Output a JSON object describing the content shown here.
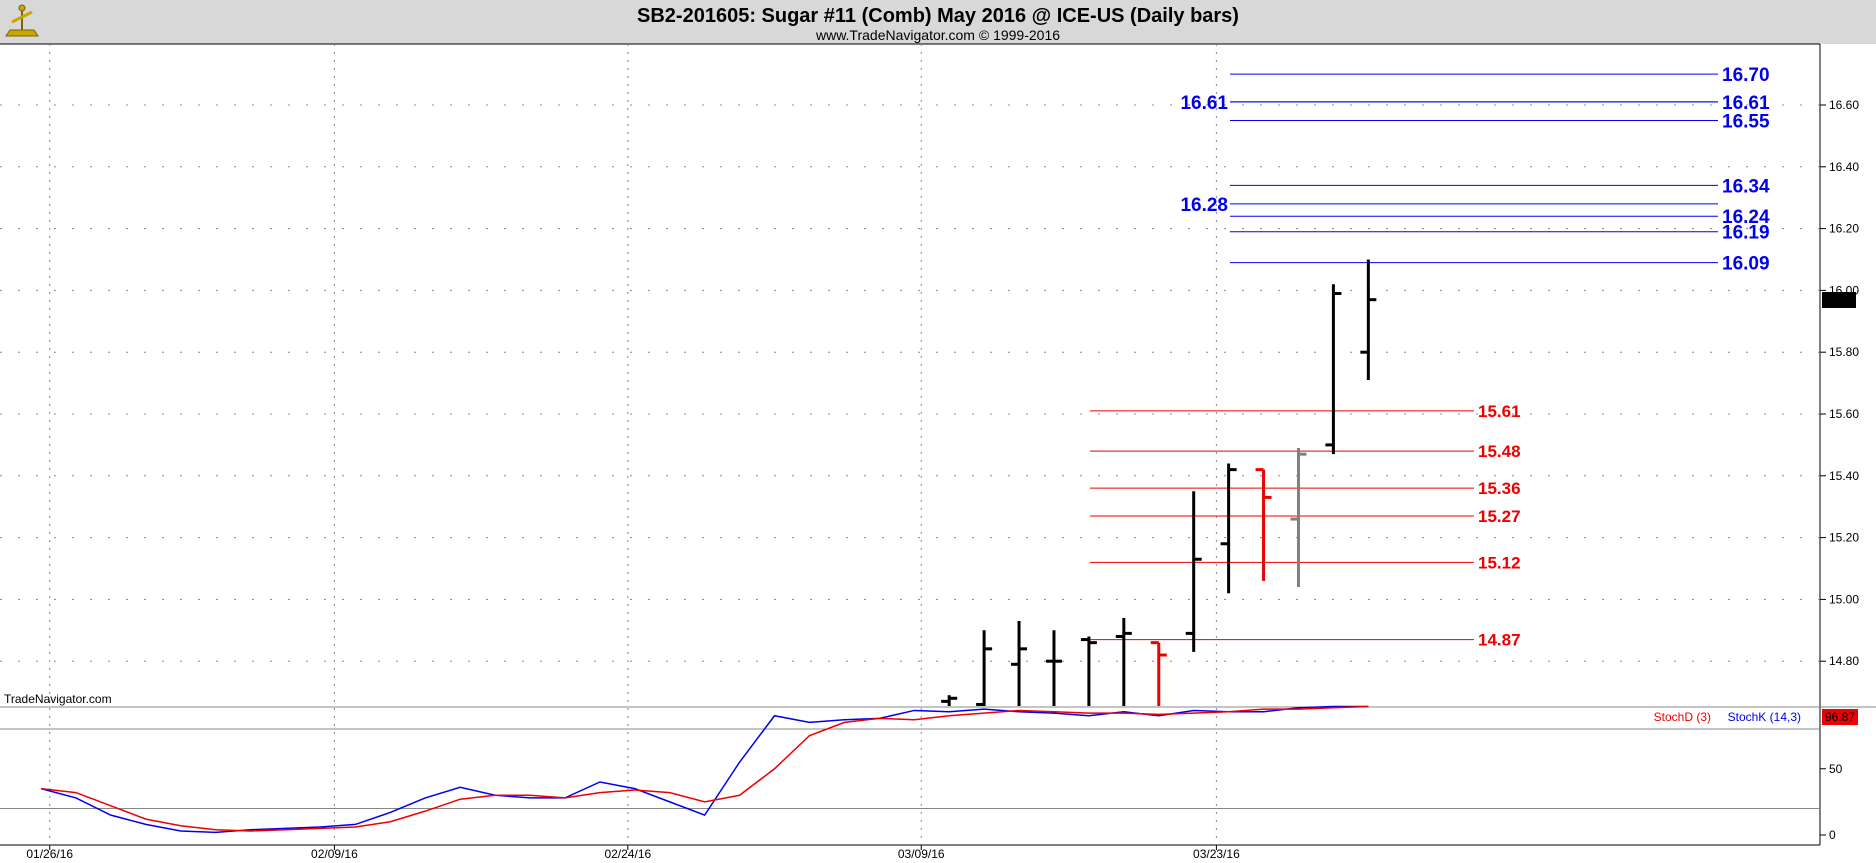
{
  "header": {
    "title": "SB2-201605:  Sugar #11 (Comb) May 2016 @ ICE-US  (Daily bars)",
    "subtitle": "www.TradeNavigator.com © 1999-2016"
  },
  "watermark": "TradeNavigator.com",
  "colors": {
    "title_bar": "#d8d8d8",
    "price_bar": "#000000",
    "down_bar": "#ee0000",
    "gray_bar": "#808080",
    "resistance": "#0000ee",
    "support": "#ee0000",
    "stoch_k": "#0000ee",
    "stoch_d": "#ee0000"
  },
  "chart_data": [
    {
      "type": "ohlc",
      "x_dates": [
        "01/26/16",
        "02/09/16",
        "02/24/16",
        "03/09/16",
        "03/23/16"
      ],
      "y_ticks": [
        "14.80",
        "15.00",
        "15.20",
        "15.40",
        "15.60",
        "15.80",
        "16.00",
        "16.20",
        "16.40",
        "16.60"
      ],
      "ylim": [
        14.65,
        16.8
      ],
      "grid": true,
      "last_price": "15.97",
      "bars": [
        {
          "day": 26,
          "o": 14.67,
          "h": 14.69,
          "l": 14.65,
          "c": 14.68,
          "color": "black"
        },
        {
          "day": 27,
          "o": 14.66,
          "h": 14.9,
          "l": 14.65,
          "c": 14.84,
          "color": "black"
        },
        {
          "day": 28,
          "o": 14.79,
          "h": 14.93,
          "l": 14.65,
          "c": 14.84,
          "color": "black"
        },
        {
          "day": 29,
          "o": 14.8,
          "h": 14.9,
          "l": 14.65,
          "c": 14.8,
          "color": "black"
        },
        {
          "day": 30,
          "o": 14.87,
          "h": 14.88,
          "l": 14.65,
          "c": 14.86,
          "color": "black"
        },
        {
          "day": 31,
          "o": 14.88,
          "h": 14.94,
          "l": 14.65,
          "c": 14.89,
          "color": "black"
        },
        {
          "day": 32,
          "o": 14.86,
          "h": 14.86,
          "l": 14.65,
          "c": 14.82,
          "color": "red"
        },
        {
          "day": 33,
          "o": 14.89,
          "h": 15.35,
          "l": 14.83,
          "c": 15.13,
          "color": "black"
        },
        {
          "day": 34,
          "o": 15.18,
          "h": 15.44,
          "l": 15.02,
          "c": 15.42,
          "color": "black"
        },
        {
          "day": 35,
          "o": 15.42,
          "h": 15.42,
          "l": 15.06,
          "c": 15.33,
          "color": "red"
        },
        {
          "day": 36,
          "o": 15.26,
          "h": 15.49,
          "l": 15.04,
          "c": 15.47,
          "color": "gray"
        },
        {
          "day": 37,
          "o": 15.5,
          "h": 16.02,
          "l": 15.47,
          "c": 15.99,
          "color": "black"
        },
        {
          "day": 38,
          "o": 15.8,
          "h": 16.1,
          "l": 15.71,
          "c": 15.97,
          "color": "black"
        }
      ],
      "levels_blue": [
        {
          "label": "16.70",
          "value": 16.7
        },
        {
          "label": "16.61",
          "value": 16.61
        },
        {
          "label": "16.55",
          "value": 16.55
        },
        {
          "label": "16.34",
          "value": 16.34
        },
        {
          "label": "16.24",
          "value": 16.24
        },
        {
          "label": "16.19",
          "value": 16.19
        },
        {
          "label": "16.09",
          "value": 16.09
        }
      ],
      "levels_blue_left": [
        {
          "label": "16.61",
          "value": 16.61
        },
        {
          "label": "16.28",
          "value": 16.28
        }
      ],
      "levels_red": [
        {
          "label": "15.61",
          "value": 15.61
        },
        {
          "label": "15.48",
          "value": 15.48
        },
        {
          "label": "15.36",
          "value": 15.36
        },
        {
          "label": "15.27",
          "value": 15.27
        },
        {
          "label": "15.12",
          "value": 15.12
        },
        {
          "label": "14.87",
          "value": 14.87
        }
      ]
    },
    {
      "type": "line",
      "y_ticks": [
        "0",
        "50"
      ],
      "ylim": [
        0,
        100
      ],
      "last_value": "96.87",
      "reference_lines": [
        80,
        20
      ],
      "series": [
        {
          "name": "StochK (14,3)",
          "color": "blue",
          "x": [
            0,
            1,
            2,
            3,
            4,
            5,
            6,
            7,
            8,
            9,
            10,
            11,
            12,
            13,
            14,
            15,
            16,
            17,
            18,
            19,
            20,
            21,
            22,
            23,
            24,
            25,
            26,
            27,
            28,
            29,
            30,
            31,
            32,
            33,
            34,
            35,
            36,
            37,
            38
          ],
          "values": [
            35,
            28,
            15,
            8,
            3,
            2,
            4,
            5,
            6,
            8,
            17,
            28,
            36,
            30,
            28,
            28,
            40,
            35,
            25,
            15,
            55,
            90,
            85,
            87,
            88,
            94,
            93,
            95,
            93,
            92,
            90,
            93,
            90,
            94,
            93,
            93,
            96,
            97,
            97
          ]
        },
        {
          "name": "StochD (3)",
          "color": "red",
          "x": [
            0,
            1,
            2,
            3,
            4,
            5,
            6,
            7,
            8,
            9,
            10,
            11,
            12,
            13,
            14,
            15,
            16,
            17,
            18,
            19,
            20,
            21,
            22,
            23,
            24,
            25,
            26,
            27,
            28,
            29,
            30,
            31,
            32,
            33,
            34,
            35,
            36,
            37,
            38
          ],
          "values": [
            35,
            32,
            22,
            12,
            7,
            4,
            3,
            4,
            5,
            6,
            10,
            18,
            27,
            30,
            30,
            28,
            32,
            34,
            32,
            25,
            30,
            50,
            75,
            85,
            88,
            87,
            90,
            92,
            94,
            93,
            92,
            92,
            91,
            92,
            93,
            95,
            95,
            96,
            97
          ]
        }
      ]
    }
  ]
}
